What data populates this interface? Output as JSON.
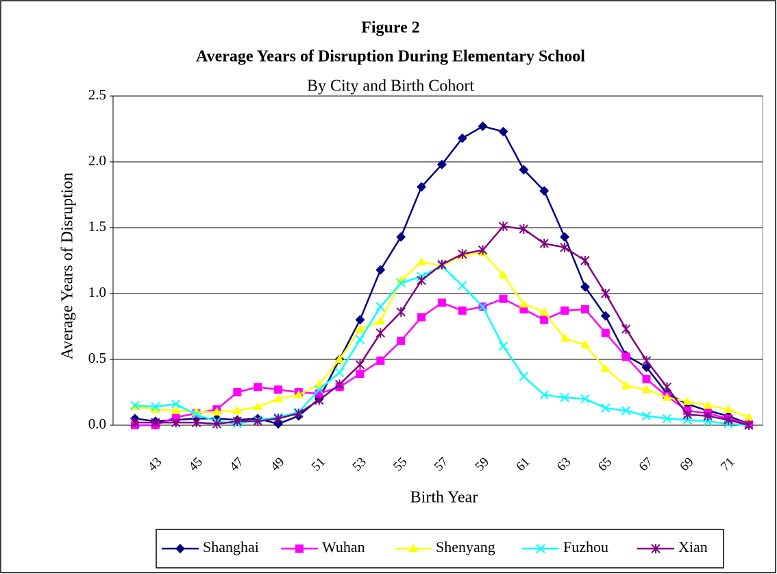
{
  "chart_data": {
    "type": "line",
    "title": "Figure 2",
    "subtitle": "Average Years of Disruption During Elementary School",
    "caption": "By City and Birth Cohort",
    "x_label": "Birth Year",
    "y_label": "Average Years of Disruption",
    "categories": [
      null,
      "43",
      null,
      "45",
      null,
      "47",
      null,
      "49",
      null,
      "51",
      null,
      "53",
      null,
      "55",
      null,
      "57",
      null,
      "59",
      null,
      "61",
      null,
      "63",
      null,
      "65",
      null,
      "67",
      null,
      "69",
      null,
      "71",
      null
    ],
    "ylim": [
      0,
      2.5
    ],
    "yticks": [
      {
        "value": 0,
        "label": "0.0"
      },
      0.5,
      {
        "value": 1,
        "label": "1.0"
      },
      1.5,
      {
        "value": 2,
        "label": "2.0"
      },
      2.5
    ],
    "grid": true,
    "legend": "bottom",
    "series": [
      {
        "name": "Shanghai",
        "color": "#000080",
        "marker": "diamond",
        "values": [
          0.05,
          0.03,
          0.04,
          0.05,
          0.05,
          0.04,
          0.05,
          0.01,
          0.07,
          0.2,
          0.5,
          0.8,
          1.18,
          1.43,
          1.81,
          1.98,
          2.18,
          2.27,
          2.23,
          1.94,
          1.78,
          1.43,
          1.05,
          0.83,
          0.53,
          0.44,
          0.24,
          0.16,
          0.11,
          0.07,
          0.01
        ]
      },
      {
        "name": "Wuhan",
        "color": "#ff00ff",
        "marker": "square",
        "values": [
          0.0,
          0.0,
          0.06,
          0.09,
          0.12,
          0.25,
          0.29,
          0.27,
          0.25,
          0.24,
          0.29,
          0.39,
          0.49,
          0.64,
          0.82,
          0.93,
          0.87,
          0.9,
          0.96,
          0.88,
          0.8,
          0.87,
          0.88,
          0.7,
          0.52,
          0.35,
          0.22,
          0.11,
          0.09,
          0.05,
          0.01
        ]
      },
      {
        "name": "Shenyang",
        "color": "#ffff00",
        "marker": "triangle",
        "values": [
          0.14,
          0.12,
          0.11,
          0.1,
          0.1,
          0.11,
          0.14,
          0.2,
          0.23,
          0.31,
          0.5,
          0.73,
          0.79,
          1.1,
          1.24,
          1.21,
          1.29,
          1.31,
          1.14,
          0.92,
          0.86,
          0.66,
          0.61,
          0.43,
          0.3,
          0.27,
          0.21,
          0.18,
          0.15,
          0.12,
          0.06
        ]
      },
      {
        "name": "Fuzhou",
        "color": "#00ffff",
        "marker": "x",
        "values": [
          0.15,
          0.14,
          0.16,
          0.08,
          0.03,
          0.01,
          0.04,
          0.06,
          0.1,
          0.27,
          0.4,
          0.65,
          0.9,
          1.08,
          1.13,
          1.21,
          1.06,
          0.9,
          0.6,
          0.37,
          0.23,
          0.21,
          0.2,
          0.13,
          0.11,
          0.07,
          0.05,
          0.04,
          0.03,
          0.01,
          0.0
        ]
      },
      {
        "name": "Xian",
        "color": "#800080",
        "marker": "star",
        "values": [
          0.02,
          0.02,
          0.02,
          0.02,
          0.01,
          0.03,
          0.03,
          0.05,
          0.09,
          0.19,
          0.31,
          0.46,
          0.7,
          0.86,
          1.1,
          1.22,
          1.3,
          1.33,
          1.51,
          1.49,
          1.38,
          1.35,
          1.25,
          1.0,
          0.73,
          0.49,
          0.29,
          0.08,
          0.07,
          0.04,
          0.0
        ]
      }
    ]
  }
}
